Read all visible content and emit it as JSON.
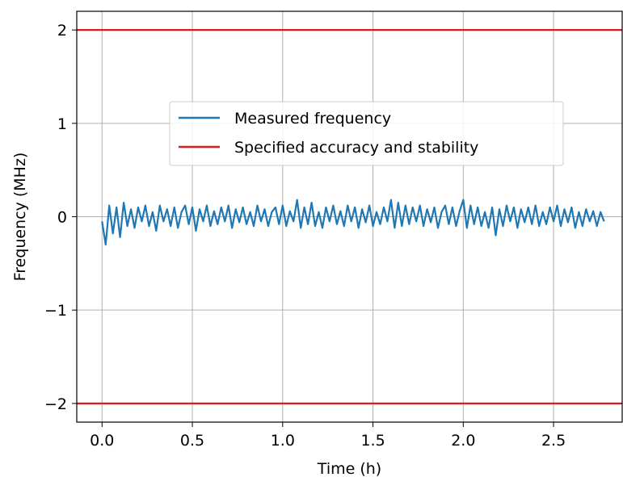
{
  "chart_data": {
    "type": "line",
    "xlabel": "Time (h)",
    "ylabel": "Frequency (MHz)",
    "xlim": [
      -0.14,
      2.88
    ],
    "ylim": [
      -2.2,
      2.2
    ],
    "xticks": [
      0.0,
      0.5,
      1.0,
      1.5,
      2.0,
      2.5
    ],
    "xtick_labels": [
      "0.0",
      "0.5",
      "1.0",
      "1.5",
      "2.0",
      "2.5"
    ],
    "yticks": [
      -2,
      -1,
      0,
      1,
      2
    ],
    "ytick_labels": [
      "−2",
      "−1",
      "0",
      "1",
      "2"
    ],
    "grid": true,
    "legend_position": "upper-center",
    "series": [
      {
        "name": "Measured frequency",
        "color": "#1f77b4",
        "x": [
          0.0,
          0.02,
          0.04,
          0.06,
          0.08,
          0.1,
          0.12,
          0.14,
          0.16,
          0.18,
          0.2,
          0.22,
          0.24,
          0.26,
          0.28,
          0.3,
          0.32,
          0.34,
          0.36,
          0.38,
          0.4,
          0.42,
          0.44,
          0.46,
          0.48,
          0.5,
          0.52,
          0.54,
          0.56,
          0.58,
          0.6,
          0.62,
          0.64,
          0.66,
          0.68,
          0.7,
          0.72,
          0.74,
          0.76,
          0.78,
          0.8,
          0.82,
          0.84,
          0.86,
          0.88,
          0.9,
          0.92,
          0.94,
          0.96,
          0.98,
          1.0,
          1.02,
          1.04,
          1.06,
          1.08,
          1.1,
          1.12,
          1.14,
          1.16,
          1.18,
          1.2,
          1.22,
          1.24,
          1.26,
          1.28,
          1.3,
          1.32,
          1.34,
          1.36,
          1.38,
          1.4,
          1.42,
          1.44,
          1.46,
          1.48,
          1.5,
          1.52,
          1.54,
          1.56,
          1.58,
          1.6,
          1.62,
          1.64,
          1.66,
          1.68,
          1.7,
          1.72,
          1.74,
          1.76,
          1.78,
          1.8,
          1.82,
          1.84,
          1.86,
          1.88,
          1.9,
          1.92,
          1.94,
          1.96,
          1.98,
          2.0,
          2.02,
          2.04,
          2.06,
          2.08,
          2.1,
          2.12,
          2.14,
          2.16,
          2.18,
          2.2,
          2.22,
          2.24,
          2.26,
          2.28,
          2.3,
          2.32,
          2.34,
          2.36,
          2.38,
          2.4,
          2.42,
          2.44,
          2.46,
          2.48,
          2.5,
          2.52,
          2.54,
          2.56,
          2.58,
          2.6,
          2.62,
          2.64,
          2.66,
          2.68,
          2.7,
          2.72,
          2.74,
          2.76,
          2.78
        ],
        "y": [
          -0.05,
          -0.3,
          0.12,
          -0.18,
          0.1,
          -0.22,
          0.15,
          -0.1,
          0.08,
          -0.12,
          0.1,
          -0.05,
          0.12,
          -0.1,
          0.05,
          -0.15,
          0.12,
          -0.05,
          0.08,
          -0.1,
          0.1,
          -0.12,
          0.05,
          0.12,
          -0.08,
          0.1,
          -0.15,
          0.08,
          -0.05,
          0.12,
          -0.1,
          0.06,
          -0.08,
          0.1,
          -0.05,
          0.12,
          -0.12,
          0.08,
          -0.06,
          0.1,
          -0.08,
          0.05,
          -0.1,
          0.12,
          -0.05,
          0.08,
          -0.1,
          0.05,
          0.1,
          -0.08,
          0.12,
          -0.1,
          0.06,
          -0.05,
          0.18,
          -0.12,
          0.1,
          -0.08,
          0.15,
          -0.1,
          0.05,
          -0.12,
          0.1,
          -0.05,
          0.12,
          -0.08,
          0.06,
          -0.1,
          0.12,
          -0.05,
          0.1,
          -0.12,
          0.08,
          -0.06,
          0.12,
          -0.1,
          0.05,
          -0.08,
          0.1,
          -0.05,
          0.18,
          -0.12,
          0.15,
          -0.1,
          0.12,
          -0.08,
          0.1,
          -0.05,
          0.12,
          -0.1,
          0.08,
          -0.06,
          0.1,
          -0.12,
          0.05,
          0.12,
          -0.08,
          0.1,
          -0.1,
          0.06,
          0.18,
          -0.12,
          0.12,
          -0.08,
          0.1,
          -0.1,
          0.05,
          -0.12,
          0.1,
          -0.2,
          0.08,
          -0.1,
          0.12,
          -0.05,
          0.1,
          -0.12,
          0.08,
          -0.06,
          0.1,
          -0.08,
          0.12,
          -0.1,
          0.05,
          -0.08,
          0.1,
          -0.05,
          0.12,
          -0.1,
          0.08,
          -0.06,
          0.1,
          -0.12,
          0.05,
          -0.1,
          0.08,
          -0.05,
          0.06,
          -0.1,
          0.05,
          -0.05
        ]
      },
      {
        "name": "Specified accuracy and stability",
        "color": "#e31a1c",
        "levels": [
          2,
          -2
        ]
      }
    ]
  }
}
